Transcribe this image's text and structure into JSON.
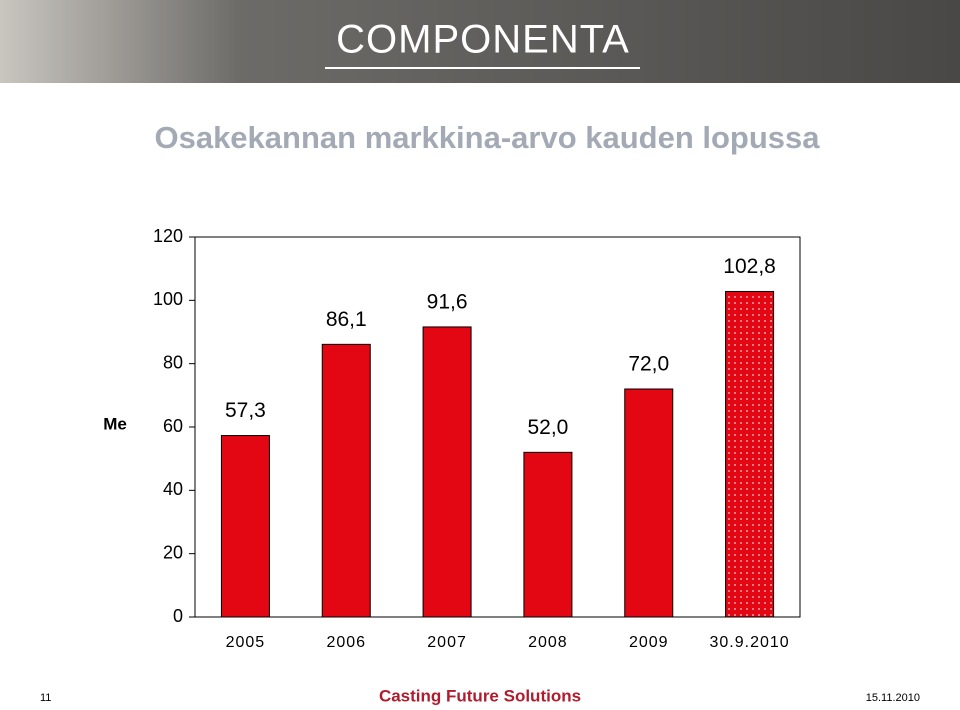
{
  "header": {
    "logo": "COMPONENTA",
    "title": "Osakekannan markkina-arvo kauden lopussa"
  },
  "chart_data": {
    "type": "bar",
    "y_label": "Me",
    "categories": [
      "2005",
      "2006",
      "2007",
      "2008",
      "2009",
      "30.9.2010"
    ],
    "values": [
      57.3,
      86.1,
      91.6,
      52.0,
      72.0,
      102.8
    ],
    "value_labels": [
      "57,3",
      "86,1",
      "91,6",
      "52,0",
      "72,0",
      "102,8"
    ],
    "color": "#e30613",
    "dotted": [
      false,
      false,
      false,
      false,
      false,
      true
    ],
    "ylim": [
      0,
      120
    ],
    "yticks": [
      0,
      20,
      40,
      60,
      80,
      100,
      120
    ],
    "grid": false
  },
  "footer": {
    "page": "11",
    "slogan": "Casting Future Solutions",
    "date": "15.11.2010"
  }
}
